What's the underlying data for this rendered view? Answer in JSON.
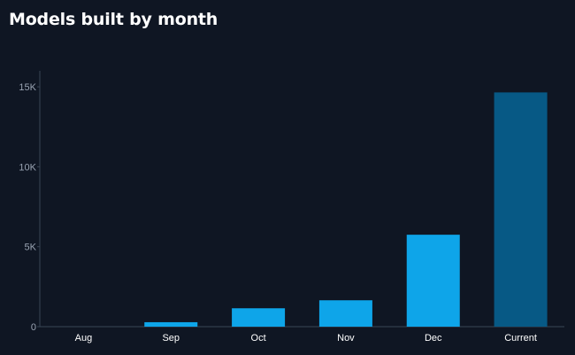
{
  "header": {
    "title": "Models built by month"
  },
  "colors": {
    "background": "#0f1623",
    "bar": "#0ea5e9",
    "bar_highlight": "#075985",
    "axis": "#3a4555",
    "tick_text": "#9aa4b3",
    "category_text": "#ffffff"
  },
  "chart_data": {
    "type": "bar",
    "title": "Models built by month",
    "xlabel": "",
    "ylabel": "",
    "categories": [
      "Aug",
      "Sep",
      "Oct",
      "Nov",
      "Dec",
      "Current"
    ],
    "values": [
      0,
      280,
      1150,
      1650,
      5750,
      14650
    ],
    "highlight_category": "Current",
    "ylim": [
      0,
      16000
    ],
    "yticks": [
      0,
      5000,
      10000,
      15000
    ],
    "ytick_labels": [
      "0",
      "5K",
      "10K",
      "15K"
    ],
    "grid": false,
    "legend": "none"
  }
}
